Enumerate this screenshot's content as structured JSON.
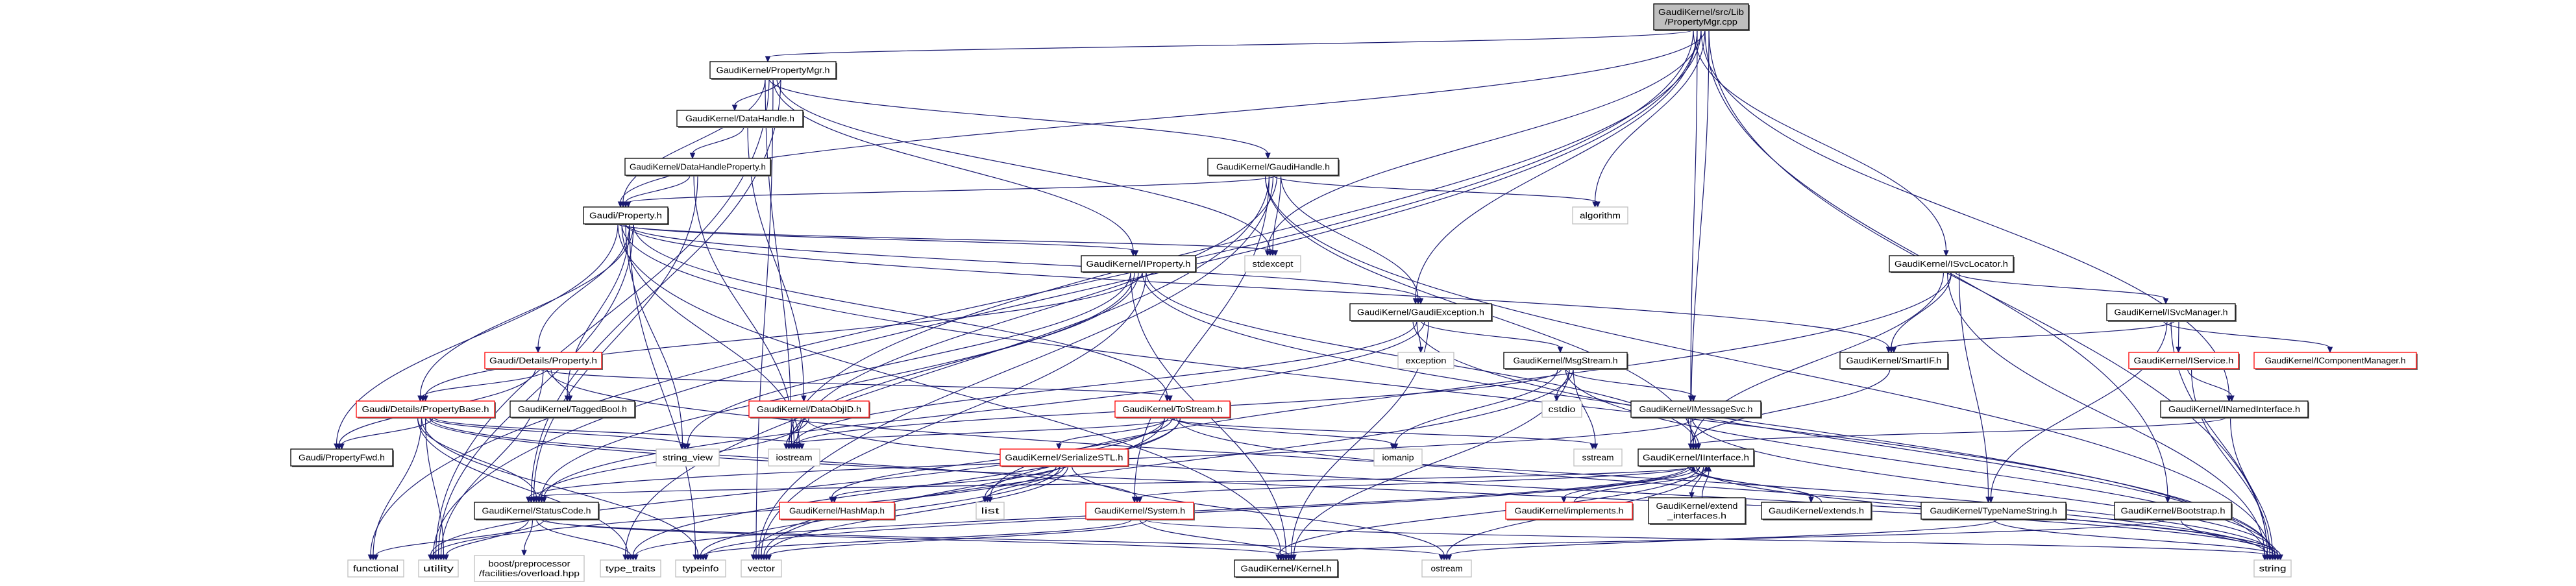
{
  "colors": {
    "edge": "#191970",
    "root_fill": "#bfbfbf",
    "node_border": "#000000",
    "truncated_border": "#ff0000",
    "external_border": "#bfbfbf"
  },
  "nodes": [
    {
      "id": "root",
      "lines": [
        "GaudiKernel/src/Lib",
        "/PropertyMgr.cpp"
      ],
      "kind": "root"
    },
    {
      "id": "PropertyMgr",
      "lines": [
        "GaudiKernel/PropertyMgr.h"
      ],
      "kind": "normal"
    },
    {
      "id": "DataHandle",
      "lines": [
        "GaudiKernel/DataHandle.h"
      ],
      "kind": "normal"
    },
    {
      "id": "DataHandleProperty",
      "lines": [
        "GaudiKernel/DataHandleProperty.h"
      ],
      "kind": "normal"
    },
    {
      "id": "GaudiHandle",
      "lines": [
        "GaudiKernel/GaudiHandle.h"
      ],
      "kind": "normal"
    },
    {
      "id": "GaudiProperty",
      "lines": [
        "Gaudi/Property.h"
      ],
      "kind": "normal"
    },
    {
      "id": "IProperty",
      "lines": [
        "GaudiKernel/IProperty.h"
      ],
      "kind": "normal"
    },
    {
      "id": "stdexcept",
      "lines": [
        "stdexcept"
      ],
      "kind": "external"
    },
    {
      "id": "algorithm",
      "lines": [
        "algorithm"
      ],
      "kind": "external"
    },
    {
      "id": "ISvcLocator",
      "lines": [
        "GaudiKernel/ISvcLocator.h"
      ],
      "kind": "normal"
    },
    {
      "id": "DetailsProperty",
      "lines": [
        "Gaudi/Details/Property.h"
      ],
      "kind": "truncated"
    },
    {
      "id": "PropertyBase",
      "lines": [
        "Gaudi/Details/PropertyBase.h"
      ],
      "kind": "truncated"
    },
    {
      "id": "TaggedBool",
      "lines": [
        "GaudiKernel/TaggedBool.h"
      ],
      "kind": "normal"
    },
    {
      "id": "PropertyFwd",
      "lines": [
        "Gaudi/PropertyFwd.h"
      ],
      "kind": "normal"
    },
    {
      "id": "StatusCode",
      "lines": [
        "GaudiKernel/StatusCode.h"
      ],
      "kind": "normal"
    },
    {
      "id": "functional",
      "lines": [
        "functional"
      ],
      "kind": "external"
    },
    {
      "id": "utility",
      "lines": [
        "utility"
      ],
      "kind": "external"
    },
    {
      "id": "boost",
      "lines": [
        "boost/preprocessor",
        "/facilities/overload.hpp"
      ],
      "kind": "external"
    },
    {
      "id": "type_traits",
      "lines": [
        "type_traits"
      ],
      "kind": "external"
    },
    {
      "id": "string_view",
      "lines": [
        "string_view"
      ],
      "kind": "external"
    },
    {
      "id": "iostream",
      "lines": [
        "iostream"
      ],
      "kind": "external"
    },
    {
      "id": "DataObjID",
      "lines": [
        "GaudiKernel/DataObjID.h"
      ],
      "kind": "truncated"
    },
    {
      "id": "ToStream",
      "lines": [
        "GaudiKernel/ToStream.h"
      ],
      "kind": "truncated"
    },
    {
      "id": "SerializeSTL",
      "lines": [
        "GaudiKernel/SerializeSTL.h"
      ],
      "kind": "truncated"
    },
    {
      "id": "HashMap",
      "lines": [
        "GaudiKernel/HashMap.h"
      ],
      "kind": "truncated"
    },
    {
      "id": "list",
      "lines": [
        "list"
      ],
      "kind": "external"
    },
    {
      "id": "System",
      "lines": [
        "GaudiKernel/System.h"
      ],
      "kind": "truncated"
    },
    {
      "id": "typeinfo",
      "lines": [
        "typeinfo"
      ],
      "kind": "external"
    },
    {
      "id": "vector",
      "lines": [
        "vector"
      ],
      "kind": "external"
    },
    {
      "id": "Kernel",
      "lines": [
        "GaudiKernel/Kernel.h"
      ],
      "kind": "normal"
    },
    {
      "id": "GaudiException",
      "lines": [
        "GaudiKernel/GaudiException.h"
      ],
      "kind": "normal"
    },
    {
      "id": "exception",
      "lines": [
        "exception"
      ],
      "kind": "external"
    },
    {
      "id": "MsgStream",
      "lines": [
        "GaudiKernel/MsgStream.h"
      ],
      "kind": "normal"
    },
    {
      "id": "cstdio",
      "lines": [
        "cstdio"
      ],
      "kind": "external"
    },
    {
      "id": "IMessageSvc",
      "lines": [
        "GaudiKernel/IMessageSvc.h"
      ],
      "kind": "normal"
    },
    {
      "id": "iomanip",
      "lines": [
        "iomanip"
      ],
      "kind": "external"
    },
    {
      "id": "sstream",
      "lines": [
        "sstream"
      ],
      "kind": "external"
    },
    {
      "id": "IInterface",
      "lines": [
        "GaudiKernel/IInterface.h"
      ],
      "kind": "normal"
    },
    {
      "id": "implements",
      "lines": [
        "GaudiKernel/implements.h"
      ],
      "kind": "truncated"
    },
    {
      "id": "extend_interfaces",
      "lines": [
        "GaudiKernel/extend",
        "_interfaces.h"
      ],
      "kind": "normal"
    },
    {
      "id": "extends",
      "lines": [
        "GaudiKernel/extends.h"
      ],
      "kind": "normal"
    },
    {
      "id": "ostream",
      "lines": [
        "ostream"
      ],
      "kind": "external"
    },
    {
      "id": "SmartIF",
      "lines": [
        "GaudiKernel/SmartIF.h"
      ],
      "kind": "normal"
    },
    {
      "id": "ISvcManager",
      "lines": [
        "GaudiKernel/ISvcManager.h"
      ],
      "kind": "normal"
    },
    {
      "id": "IService",
      "lines": [
        "GaudiKernel/IService.h"
      ],
      "kind": "truncated"
    },
    {
      "id": "IComponentManager",
      "lines": [
        "GaudiKernel/IComponentManager.h"
      ],
      "kind": "truncated"
    },
    {
      "id": "INamedInterface",
      "lines": [
        "GaudiKernel/INamedInterface.h"
      ],
      "kind": "normal"
    },
    {
      "id": "TypeNameString",
      "lines": [
        "GaudiKernel/TypeNameString.h"
      ],
      "kind": "normal"
    },
    {
      "id": "Bootstrap",
      "lines": [
        "GaudiKernel/Bootstrap.h"
      ],
      "kind": "normal"
    },
    {
      "id": "string",
      "lines": [
        "string"
      ],
      "kind": "external"
    }
  ],
  "edges": [
    [
      "root",
      "PropertyMgr"
    ],
    [
      "root",
      "GaudiException"
    ],
    [
      "root",
      "stdexcept"
    ],
    [
      "root",
      "algorithm"
    ],
    [
      "root",
      "IInterface"
    ],
    [
      "root",
      "ISvcLocator"
    ],
    [
      "root",
      "IMessageSvc"
    ],
    [
      "root",
      "INamedInterface"
    ],
    [
      "root",
      "Bootstrap"
    ],
    [
      "root",
      "string"
    ],
    [
      "root",
      "functional"
    ],
    [
      "root",
      "utility"
    ],
    [
      "root",
      "iostream"
    ],
    [
      "root",
      "GaudiProperty"
    ],
    [
      "PropertyMgr",
      "DataHandle"
    ],
    [
      "PropertyMgr",
      "GaudiProperty"
    ],
    [
      "PropertyMgr",
      "GaudiHandle"
    ],
    [
      "PropertyMgr",
      "IProperty"
    ],
    [
      "PropertyMgr",
      "stdexcept"
    ],
    [
      "PropertyMgr",
      "StatusCode"
    ],
    [
      "PropertyMgr",
      "iostream"
    ],
    [
      "PropertyMgr",
      "utility"
    ],
    [
      "PropertyMgr",
      "vector"
    ],
    [
      "DataHandle",
      "DataHandleProperty"
    ],
    [
      "DataHandle",
      "DataObjID"
    ],
    [
      "DataHandleProperty",
      "GaudiProperty"
    ],
    [
      "DataHandleProperty",
      "iostream"
    ],
    [
      "DataHandleProperty",
      "StatusCode"
    ],
    [
      "GaudiHandle",
      "GaudiProperty"
    ],
    [
      "GaudiHandle",
      "GaudiException"
    ],
    [
      "GaudiHandle",
      "IInterface"
    ],
    [
      "GaudiHandle",
      "System"
    ],
    [
      "GaudiHandle",
      "algorithm"
    ],
    [
      "GaudiHandle",
      "iostream"
    ],
    [
      "GaudiHandle",
      "stdexcept"
    ],
    [
      "GaudiHandle",
      "string"
    ],
    [
      "GaudiHandle",
      "type_traits"
    ],
    [
      "GaudiHandle",
      "vector"
    ],
    [
      "GaudiProperty",
      "DetailsProperty"
    ],
    [
      "GaudiProperty",
      "PropertyBase"
    ],
    [
      "GaudiProperty",
      "PropertyFwd"
    ],
    [
      "GaudiProperty",
      "IProperty"
    ],
    [
      "GaudiProperty",
      "SmartIF"
    ],
    [
      "GaudiProperty",
      "TaggedBool"
    ],
    [
      "GaudiProperty",
      "ToStream"
    ],
    [
      "GaudiProperty",
      "stdexcept"
    ],
    [
      "GaudiProperty",
      "string"
    ],
    [
      "GaudiProperty",
      "string_view"
    ],
    [
      "GaudiProperty",
      "typeinfo"
    ],
    [
      "GaudiProperty",
      "utility"
    ],
    [
      "GaudiProperty",
      "Kernel"
    ],
    [
      "GaudiProperty",
      "iostream"
    ],
    [
      "GaudiProperty",
      "GaudiException"
    ],
    [
      "DetailsProperty",
      "PropertyBase"
    ],
    [
      "DetailsProperty",
      "TaggedBool"
    ],
    [
      "DetailsProperty",
      "PropertyFwd"
    ],
    [
      "DetailsProperty",
      "ToStream"
    ],
    [
      "DetailsProperty",
      "utility"
    ],
    [
      "DetailsProperty",
      "string"
    ],
    [
      "PropertyBase",
      "PropertyFwd"
    ],
    [
      "PropertyBase",
      "StatusCode"
    ],
    [
      "PropertyBase",
      "functional"
    ],
    [
      "PropertyBase",
      "utility"
    ],
    [
      "PropertyBase",
      "string_view"
    ],
    [
      "PropertyBase",
      "iostream"
    ],
    [
      "PropertyBase",
      "type_traits"
    ],
    [
      "PropertyBase",
      "typeinfo"
    ],
    [
      "PropertyBase",
      "string"
    ],
    [
      "PropertyBase",
      "System"
    ],
    [
      "StatusCode",
      "functional"
    ],
    [
      "StatusCode",
      "utility"
    ],
    [
      "StatusCode",
      "boost"
    ],
    [
      "StatusCode",
      "type_traits"
    ],
    [
      "StatusCode",
      "ostream"
    ],
    [
      "StatusCode",
      "Kernel"
    ],
    [
      "DataObjID",
      "iostream"
    ],
    [
      "DataObjID",
      "string"
    ],
    [
      "DataObjID",
      "StatusCode"
    ],
    [
      "IProperty",
      "PropertyBase"
    ],
    [
      "IProperty",
      "IInterface"
    ],
    [
      "IProperty",
      "Kernel"
    ],
    [
      "IProperty",
      "StatusCode"
    ],
    [
      "IProperty",
      "iostream"
    ],
    [
      "IProperty",
      "string"
    ],
    [
      "IProperty",
      "vector"
    ],
    [
      "IProperty",
      "string_view"
    ],
    [
      "ToStream",
      "SerializeSTL"
    ],
    [
      "ToStream",
      "HashMap"
    ],
    [
      "ToStream",
      "iostream"
    ],
    [
      "ToStream",
      "list"
    ],
    [
      "ToStream",
      "vector"
    ],
    [
      "ToStream",
      "sstream"
    ],
    [
      "ToStream",
      "iomanip"
    ],
    [
      "ToStream",
      "string"
    ],
    [
      "ToStream",
      "type_traits"
    ],
    [
      "ToStream",
      "utility"
    ],
    [
      "SerializeSTL",
      "HashMap"
    ],
    [
      "SerializeSTL",
      "list"
    ],
    [
      "SerializeSTL",
      "vector"
    ],
    [
      "SerializeSTL",
      "ostream"
    ],
    [
      "SerializeSTL",
      "utility"
    ],
    [
      "SerializeSTL",
      "typeinfo"
    ],
    [
      "System",
      "Kernel"
    ],
    [
      "System",
      "string"
    ],
    [
      "System",
      "vector"
    ],
    [
      "System",
      "typeinfo"
    ],
    [
      "GaudiException",
      "exception"
    ],
    [
      "GaudiException",
      "MsgStream"
    ],
    [
      "GaudiException",
      "StatusCode"
    ],
    [
      "GaudiException",
      "Kernel"
    ],
    [
      "GaudiException",
      "string"
    ],
    [
      "GaudiException",
      "iostream"
    ],
    [
      "MsgStream",
      "IMessageSvc"
    ],
    [
      "MsgStream",
      "cstdio"
    ],
    [
      "MsgStream",
      "sstream"
    ],
    [
      "MsgStream",
      "iomanip"
    ],
    [
      "MsgStream",
      "iostream"
    ],
    [
      "MsgStream",
      "string"
    ],
    [
      "MsgStream",
      "Kernel"
    ],
    [
      "MsgStream",
      "vector"
    ],
    [
      "IMessageSvc",
      "IInterface"
    ],
    [
      "IMessageSvc",
      "string"
    ],
    [
      "IMessageSvc",
      "StatusCode"
    ],
    [
      "IInterface",
      "implements"
    ],
    [
      "IInterface",
      "extend_interfaces"
    ],
    [
      "IInterface",
      "extends"
    ],
    [
      "IInterface",
      "System"
    ],
    [
      "IInterface",
      "StatusCode"
    ],
    [
      "IInterface",
      "Kernel"
    ],
    [
      "IInterface",
      "ostream"
    ],
    [
      "IInterface",
      "type_traits"
    ],
    [
      "IInterface",
      "typeinfo"
    ],
    [
      "IInterface",
      "string"
    ],
    [
      "implements",
      "IInterface"
    ],
    [
      "extend_interfaces",
      "IInterface"
    ],
    [
      "extends",
      "IInterface"
    ],
    [
      "SmartIF",
      "IInterface"
    ],
    [
      "ISvcLocator",
      "SmartIF"
    ],
    [
      "ISvcLocator",
      "ISvcManager"
    ],
    [
      "ISvcLocator",
      "TypeNameString"
    ],
    [
      "ISvcLocator",
      "IInterface"
    ],
    [
      "ISvcLocator",
      "string"
    ],
    [
      "ISvcLocator",
      "list"
    ],
    [
      "ISvcManager",
      "SmartIF"
    ],
    [
      "ISvcManager",
      "IService"
    ],
    [
      "ISvcManager",
      "IComponentManager"
    ],
    [
      "ISvcManager",
      "TypeNameString"
    ],
    [
      "ISvcManager",
      "string"
    ],
    [
      "IService",
      "INamedInterface"
    ],
    [
      "IService",
      "string"
    ],
    [
      "INamedInterface",
      "IInterface"
    ],
    [
      "INamedInterface",
      "string"
    ],
    [
      "TypeNameString",
      "string"
    ],
    [
      "TypeNameString",
      "ostream"
    ],
    [
      "Bootstrap",
      "string"
    ],
    [
      "Bootstrap",
      "Kernel"
    ]
  ]
}
